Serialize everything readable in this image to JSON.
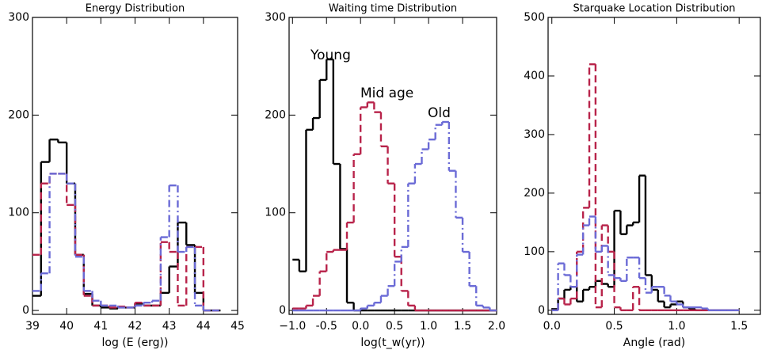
{
  "chart_data": [
    {
      "type": "histogram",
      "title": "Energy Distribution",
      "xlabel": "log (E (erg))",
      "bins": [
        39.0,
        39.25,
        39.5,
        39.75,
        40.0,
        40.25,
        40.5,
        40.75,
        41.0,
        41.25,
        41.5,
        41.75,
        42.0,
        42.25,
        42.5,
        42.75,
        43.0,
        43.25,
        43.5,
        43.75,
        44.0,
        44.25,
        44.5
      ],
      "series": [
        {
          "color": "#000000",
          "dash": "solid",
          "values": [
            15,
            152,
            175,
            172,
            130,
            57,
            17,
            5,
            3,
            2,
            3,
            3,
            7,
            5,
            5,
            18,
            45,
            90,
            67,
            18,
            0,
            0
          ]
        },
        {
          "color": "#b8234a",
          "dash": "dashed",
          "values": [
            57,
            130,
            140,
            140,
            108,
            57,
            15,
            5,
            5,
            3,
            4,
            3,
            8,
            5,
            5,
            70,
            60,
            5,
            65,
            65,
            0,
            0
          ]
        },
        {
          "color": "#6b6bd6",
          "dash": "dashdot",
          "values": [
            20,
            38,
            140,
            140,
            130,
            55,
            20,
            10,
            5,
            5,
            3,
            3,
            5,
            8,
            10,
            75,
            128,
            60,
            65,
            5,
            0,
            0
          ]
        }
      ],
      "xlim": [
        39,
        45
      ],
      "ylim": [
        -4,
        300
      ],
      "xticks": [
        39,
        40,
        41,
        42,
        43,
        44,
        45
      ],
      "yticks": [
        0,
        100,
        200,
        300
      ]
    },
    {
      "type": "histogram",
      "title": "Waiting time Distribution",
      "xlabel": "log(t_w(yr))",
      "bins": [
        -1.0,
        -0.9,
        -0.8,
        -0.7,
        -0.6,
        -0.5,
        -0.4,
        -0.3,
        -0.2,
        -0.1,
        0.0,
        0.1,
        0.2,
        0.3,
        0.4,
        0.5,
        0.6,
        0.7,
        0.8,
        0.9,
        1.0,
        1.1,
        1.2,
        1.3,
        1.4,
        1.5,
        1.6,
        1.7,
        1.8,
        1.9,
        2.0
      ],
      "series": [
        {
          "name": "Young",
          "color": "#000000",
          "dash": "solid",
          "values": [
            52,
            40,
            185,
            197,
            236,
            257,
            150,
            63,
            8,
            0,
            0,
            0,
            0,
            0,
            0,
            0,
            0,
            0,
            0,
            0,
            0,
            0,
            0,
            0,
            0,
            0,
            0,
            0,
            0,
            0
          ]
        },
        {
          "name": "Mid age",
          "color": "#b8234a",
          "dash": "dashed",
          "values": [
            2,
            2,
            5,
            15,
            40,
            60,
            62,
            62,
            90,
            160,
            208,
            213,
            203,
            168,
            130,
            55,
            20,
            5,
            0,
            0,
            0,
            0,
            0,
            0,
            0,
            0,
            0,
            0,
            0,
            0
          ]
        },
        {
          "name": "Old",
          "color": "#6b6bd6",
          "dash": "dashdot",
          "values": [
            0,
            0,
            0,
            0,
            0,
            0,
            0,
            0,
            0,
            0,
            2,
            5,
            8,
            15,
            25,
            50,
            65,
            130,
            150,
            165,
            175,
            190,
            193,
            143,
            95,
            60,
            25,
            5,
            3,
            0
          ]
        }
      ],
      "xlim": [
        -1.05,
        2.0
      ],
      "ylim": [
        -4,
        300
      ],
      "xticks": [
        {
          "value": -1.0,
          "label": "−1.0"
        },
        -0.5,
        {
          "value": 0.0,
          "label": "0.0"
        },
        0.5,
        {
          "value": 1.0,
          "label": "1.0"
        },
        1.5,
        {
          "value": 2.0,
          "label": "2.0"
        }
      ],
      "yticks": [
        0,
        100,
        200,
        300
      ]
    },
    {
      "type": "histogram",
      "title": "Starquake Location Distribution",
      "xlabel": "Angle (rad)",
      "bins": [
        0.0,
        0.05,
        0.1,
        0.15,
        0.2,
        0.25,
        0.3,
        0.35,
        0.4,
        0.45,
        0.5,
        0.55,
        0.6,
        0.65,
        0.7,
        0.75,
        0.8,
        0.85,
        0.9,
        0.95,
        1.0,
        1.05,
        1.1,
        1.15,
        1.2,
        1.25,
        1.3,
        1.35,
        1.4,
        1.45,
        1.5
      ],
      "series": [
        {
          "color": "#000000",
          "dash": "solid",
          "values": [
            2,
            20,
            35,
            40,
            15,
            35,
            40,
            50,
            45,
            40,
            170,
            130,
            145,
            150,
            230,
            60,
            35,
            15,
            5,
            10,
            15,
            5,
            2,
            0,
            0,
            0,
            0,
            0,
            0,
            0
          ]
        },
        {
          "color": "#b8234a",
          "dash": "dashed",
          "values": [
            0,
            20,
            10,
            20,
            100,
            175,
            420,
            5,
            145,
            100,
            5,
            0,
            0,
            40,
            0,
            0,
            0,
            0,
            0,
            0,
            0,
            0,
            0,
            0,
            0,
            0,
            0,
            0,
            0,
            0
          ]
        },
        {
          "color": "#6b6bd6",
          "dash": "dashdot",
          "values": [
            0,
            80,
            60,
            40,
            95,
            145,
            160,
            100,
            110,
            60,
            55,
            50,
            90,
            90,
            55,
            30,
            40,
            40,
            25,
            15,
            10,
            5,
            5,
            5,
            3,
            0,
            0,
            0,
            0,
            0
          ]
        }
      ],
      "xlim": [
        -0.03,
        1.67
      ],
      "ylim": [
        -7,
        500
      ],
      "xticks": [
        {
          "value": 0.0,
          "label": "0.0"
        },
        0.5,
        {
          "value": 1.0,
          "label": "1.0"
        },
        1.5
      ],
      "yticks": [
        0,
        100,
        200,
        300,
        400,
        500
      ]
    }
  ]
}
